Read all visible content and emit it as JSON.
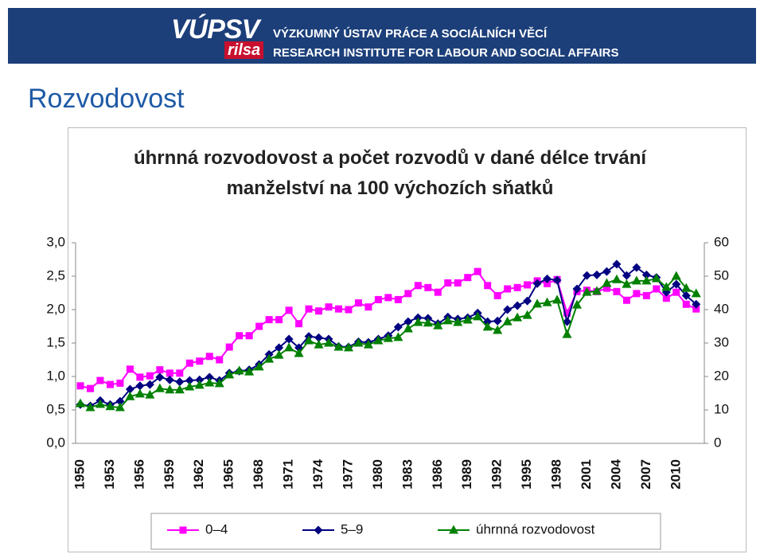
{
  "header": {
    "logo": "VÚPSV",
    "logo_sub": "rilsa",
    "line1": "VÝZKUMNÝ ÚSTAV PRÁCE A SOCIÁLNÍCH VĚCÍ",
    "line2": "RESEARCH INSTITUTE FOR LABOUR AND SOCIAL AFFAIRS"
  },
  "page_title": "Rozvodovost",
  "chart_data": {
    "type": "line",
    "title": "úhrnná rozvodovost a počet rozvodů v dané délce trvání manželství na 100 výchozích sňatků",
    "categories": [
      "1950",
      null,
      null,
      "1953",
      null,
      null,
      "1956",
      null,
      null,
      "1959",
      null,
      null,
      "1962",
      null,
      null,
      "1965",
      null,
      null,
      "1968",
      null,
      null,
      "1971",
      null,
      null,
      "1974",
      null,
      null,
      "1977",
      null,
      null,
      "1980",
      null,
      null,
      "1983",
      null,
      null,
      "1986",
      null,
      null,
      "1989",
      null,
      null,
      "1992",
      null,
      null,
      "1995",
      null,
      null,
      "1998",
      null,
      null,
      "2001",
      null,
      null,
      "2004",
      null,
      null,
      "2007",
      null,
      null,
      "2010",
      null,
      null
    ],
    "ylim": [
      0,
      3
    ],
    "yticks": [
      {
        "value": 0,
        "label": "0,0"
      },
      {
        "value": 0.5,
        "label": "0,5"
      },
      {
        "value": 1,
        "label": "1,0"
      },
      {
        "value": 1.5,
        "label": "1,5"
      },
      {
        "value": 2,
        "label": "2,0"
      },
      {
        "value": 2.5,
        "label": "2,5"
      },
      {
        "value": 3,
        "label": "3,0"
      }
    ],
    "y2lim": [
      0,
      60
    ],
    "y2ticks": [
      0,
      10,
      20,
      30,
      40,
      50,
      60
    ],
    "grid": false,
    "legend": "bottom",
    "series": [
      {
        "name": "0–4",
        "color": "#ff00ff",
        "marker": "square",
        "values": [
          0.86,
          0.82,
          0.94,
          0.88,
          0.9,
          1.11,
          0.99,
          1.01,
          1.1,
          1.05,
          1.05,
          1.2,
          1.23,
          1.3,
          1.25,
          1.44,
          1.61,
          1.61,
          1.75,
          1.85,
          1.85,
          1.99,
          1.79,
          2.01,
          1.98,
          2.04,
          2.01,
          2.0,
          2.1,
          2.04,
          2.15,
          2.18,
          2.15,
          2.24,
          2.36,
          2.33,
          2.26,
          2.4,
          2.4,
          2.48,
          2.57,
          2.36,
          2.21,
          2.31,
          2.33,
          2.37,
          2.43,
          2.39,
          2.45,
          1.95,
          2.27,
          2.29,
          2.27,
          2.32,
          2.27,
          2.14,
          2.24,
          2.21,
          2.31,
          2.17,
          2.26,
          2.08,
          2.01
        ]
      },
      {
        "name": "5–9",
        "color": "#000080",
        "marker": "diamond",
        "values": [
          0.58,
          0.56,
          0.64,
          0.58,
          0.63,
          0.81,
          0.86,
          0.88,
          0.99,
          0.95,
          0.92,
          0.94,
          0.95,
          0.99,
          0.94,
          1.05,
          1.08,
          1.1,
          1.18,
          1.33,
          1.43,
          1.56,
          1.43,
          1.6,
          1.58,
          1.56,
          1.45,
          1.44,
          1.52,
          1.51,
          1.56,
          1.61,
          1.74,
          1.82,
          1.88,
          1.87,
          1.79,
          1.89,
          1.86,
          1.88,
          1.95,
          1.82,
          1.83,
          2.0,
          2.06,
          2.13,
          2.39,
          2.46,
          2.44,
          1.82,
          2.31,
          2.51,
          2.52,
          2.57,
          2.68,
          2.51,
          2.63,
          2.52,
          2.48,
          2.26,
          2.38,
          2.21,
          2.08
        ]
      },
      {
        "name": "úhrnná rozvodovost",
        "color": "#008000",
        "marker": "triangle",
        "axis": "y2",
        "values": [
          11.9,
          10.7,
          11.7,
          11,
          10.7,
          14,
          14.8,
          14.5,
          16.4,
          16,
          16,
          16.9,
          17.4,
          18.1,
          17.9,
          20.5,
          21.7,
          21.4,
          22.9,
          25.2,
          26.4,
          28.6,
          26.9,
          30.7,
          29.5,
          30,
          28.8,
          28.6,
          30,
          29.5,
          30.7,
          31.4,
          31.7,
          34.3,
          36.2,
          36,
          35.2,
          36.7,
          36.2,
          36.9,
          37.9,
          34.8,
          33.8,
          36.4,
          37.6,
          38.3,
          41.7,
          42.1,
          42.9,
          32.6,
          41.4,
          45.2,
          45.5,
          47.9,
          49,
          47.6,
          48.6,
          48.6,
          49.3,
          46.7,
          50,
          46.4,
          44.8
        ]
      }
    ]
  }
}
